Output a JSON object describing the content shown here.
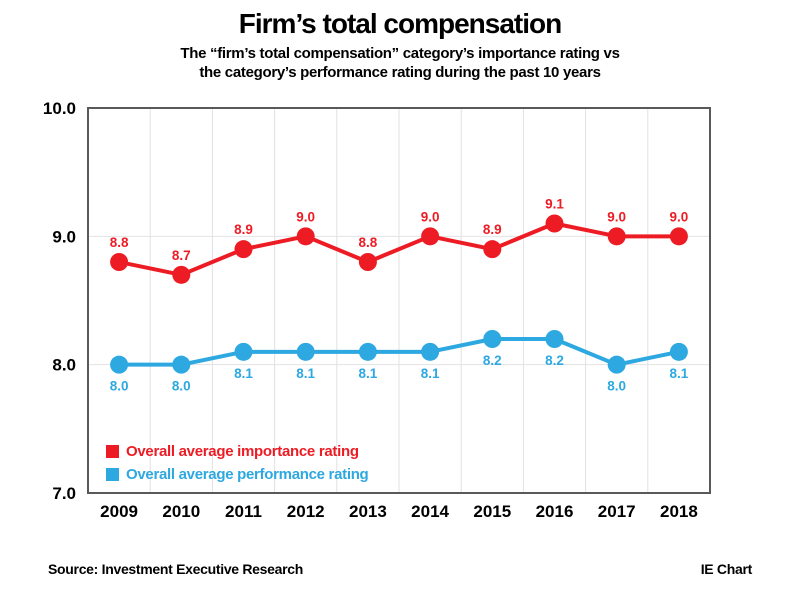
{
  "header": {
    "title": "Firm’s total compensation",
    "subtitle_line1": "The “firm’s total compensation” category’s importance rating vs",
    "subtitle_line2": "the category’s performance rating during the past 10 years"
  },
  "chart_data": {
    "type": "line",
    "title": "Firm’s total compensation",
    "categories": [
      "2009",
      "2010",
      "2011",
      "2012",
      "2013",
      "2014",
      "2015",
      "2016",
      "2017",
      "2018"
    ],
    "series": [
      {
        "name": "Overall average importance rating",
        "color": "#ed1c24",
        "values": [
          8.8,
          8.7,
          8.9,
          9.0,
          8.8,
          9.0,
          8.9,
          9.1,
          9.0,
          9.0
        ],
        "label_position": "above"
      },
      {
        "name": "Overall average performance rating",
        "color": "#2da8e0",
        "values": [
          8.0,
          8.0,
          8.1,
          8.1,
          8.1,
          8.1,
          8.2,
          8.2,
          8.0,
          8.1
        ],
        "label_position": "below"
      }
    ],
    "ylim": [
      7.0,
      10.0
    ],
    "yticks": [
      10.0,
      9.0,
      8.0,
      7.0
    ],
    "ytick_labels": [
      "10.0",
      "9.0",
      "8.0",
      "7.0"
    ],
    "grid": true,
    "legend_position": "inside-bottom-left",
    "xlabel": "",
    "ylabel": ""
  },
  "footer": {
    "source": "Source: Investment Executive Research",
    "credit": "IE Chart"
  }
}
